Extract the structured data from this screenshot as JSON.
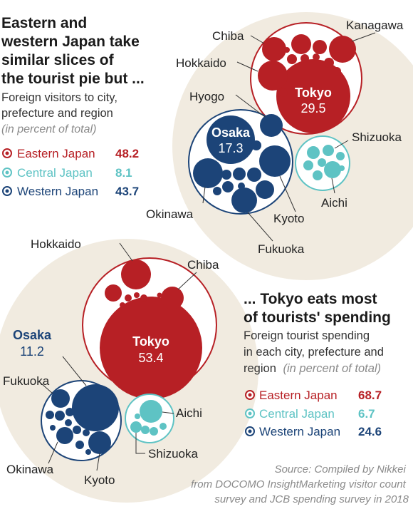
{
  "colors": {
    "eastern": "#b72025",
    "central": "#5ec3c4",
    "western": "#1c4478",
    "backdrop": "#f1ebe0"
  },
  "top": {
    "title_lines": [
      "Eastern and",
      "western Japan take",
      "similar slices of",
      "the tourist pie but ..."
    ],
    "subtitle_lines": [
      "Foreign visitors to city,",
      "prefecture and region"
    ],
    "unit": "(in percent of total)"
  },
  "bottom": {
    "title_lines": [
      "... Tokyo eats most",
      "of tourists' spending"
    ],
    "subtitle_lines": [
      "Foreign tourist spending",
      "in each city, prefecture and"
    ],
    "subtitle_last": "region",
    "unit": "(in percent of total)"
  },
  "source_lines": [
    "Source: Compiled by Nikkei",
    "from DOCOMO InsightMarketing visitor count",
    "survey and JCB spending survey in 2018"
  ],
  "chart_data": [
    {
      "type": "bubble",
      "title": "Eastern and western Japan take similar slices of the tourist pie but ...",
      "subtitle": "Foreign visitors to city, prefecture and region",
      "unit": "(in percent of total)",
      "series": [
        {
          "name": "Eastern Japan",
          "value": 48.2,
          "color": "eastern",
          "labeled_members": [
            {
              "name": "Tokyo",
              "value": 29.5
            },
            {
              "name": "Kanagawa"
            },
            {
              "name": "Chiba"
            },
            {
              "name": "Hokkaido"
            }
          ]
        },
        {
          "name": "Central Japan",
          "value": 8.1,
          "color": "central",
          "labeled_members": [
            {
              "name": "Shizuoka"
            },
            {
              "name": "Aichi"
            }
          ]
        },
        {
          "name": "Western Japan",
          "value": 43.7,
          "color": "western",
          "labeled_members": [
            {
              "name": "Osaka",
              "value": 17.3
            },
            {
              "name": "Hyogo"
            },
            {
              "name": "Okinawa"
            },
            {
              "name": "Fukuoka"
            },
            {
              "name": "Kyoto"
            }
          ]
        }
      ]
    },
    {
      "type": "bubble",
      "title": "... Tokyo eats most of tourists' spending",
      "subtitle": "Foreign tourist spending in each city, prefecture and region",
      "unit": "(in percent of total)",
      "series": [
        {
          "name": "Eastern Japan",
          "value": 68.7,
          "color": "eastern",
          "labeled_members": [
            {
              "name": "Tokyo",
              "value": 53.4
            },
            {
              "name": "Hokkaido"
            },
            {
              "name": "Chiba"
            }
          ]
        },
        {
          "name": "Central Japan",
          "value": 6.7,
          "color": "central",
          "labeled_members": [
            {
              "name": "Aichi"
            },
            {
              "name": "Shizuoka"
            }
          ]
        },
        {
          "name": "Western Japan",
          "value": 24.6,
          "color": "western",
          "labeled_members": [
            {
              "name": "Osaka",
              "value": 11.2
            },
            {
              "name": "Fukuoka"
            },
            {
              "name": "Okinawa"
            },
            {
              "name": "Kyoto"
            }
          ]
        }
      ]
    }
  ]
}
